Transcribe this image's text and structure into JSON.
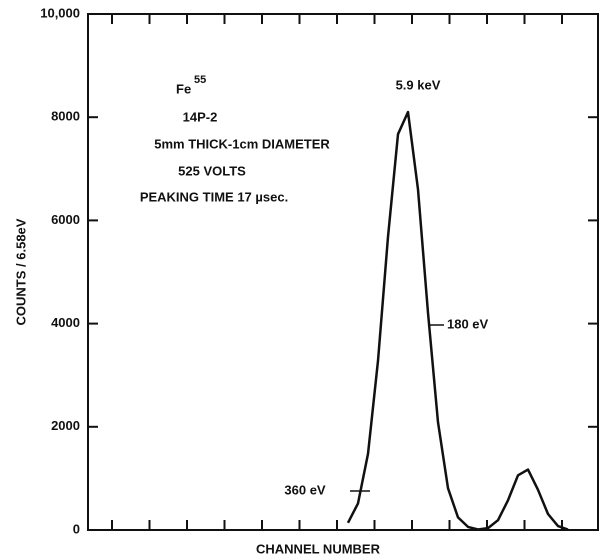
{
  "chart_data": {
    "type": "line",
    "ylabel": "COUNTS / 6.58eV",
    "xlabel": "CHANNEL NUMBER",
    "annotations": [
      "Fe",
      "55",
      "14P-2",
      "5mm THICK-1cm DIAMETER",
      "525 VOLTS",
      "PEAKING TIME 17 µsec.",
      "5.9 keV",
      "180 eV",
      "360 eV"
    ],
    "categories": [
      null,
      null,
      null,
      null,
      null,
      null,
      null,
      null,
      null,
      null,
      null,
      null,
      null,
      null,
      null,
      null,
      null,
      null,
      null,
      null,
      null,
      null,
      null,
      null,
      null,
      null,
      null,
      null,
      null,
      null,
      null,
      null,
      null,
      null,
      null,
      null,
      null,
      null,
      null,
      null,
      null,
      null,
      null,
      null,
      null,
      null,
      null,
      null,
      null,
      null,
      null,
      null
    ],
    "values": [
      null,
      null,
      null,
      null,
      null,
      null,
      null,
      null,
      null,
      null,
      null,
      null,
      null,
      null,
      null,
      null,
      null,
      null,
      null,
      null,
      null,
      null,
      null,
      null,
      null,
      null,
      140,
      515,
      1475,
      3280,
      5680,
      7670,
      8100,
      6600,
      4210,
      2090,
      810,
      245,
      60,
      10,
      36,
      190,
      575,
      1060,
      1170,
      780,
      310,
      75,
      10,
      null,
      null,
      null
    ],
    "color": "#111111",
    "ylim": [
      0,
      10000
    ],
    "yticks": [
      0,
      2000,
      4000,
      6000,
      8000,
      {
        "value": 10000,
        "label": "10,000"
      }
    ],
    "grid": false
  }
}
